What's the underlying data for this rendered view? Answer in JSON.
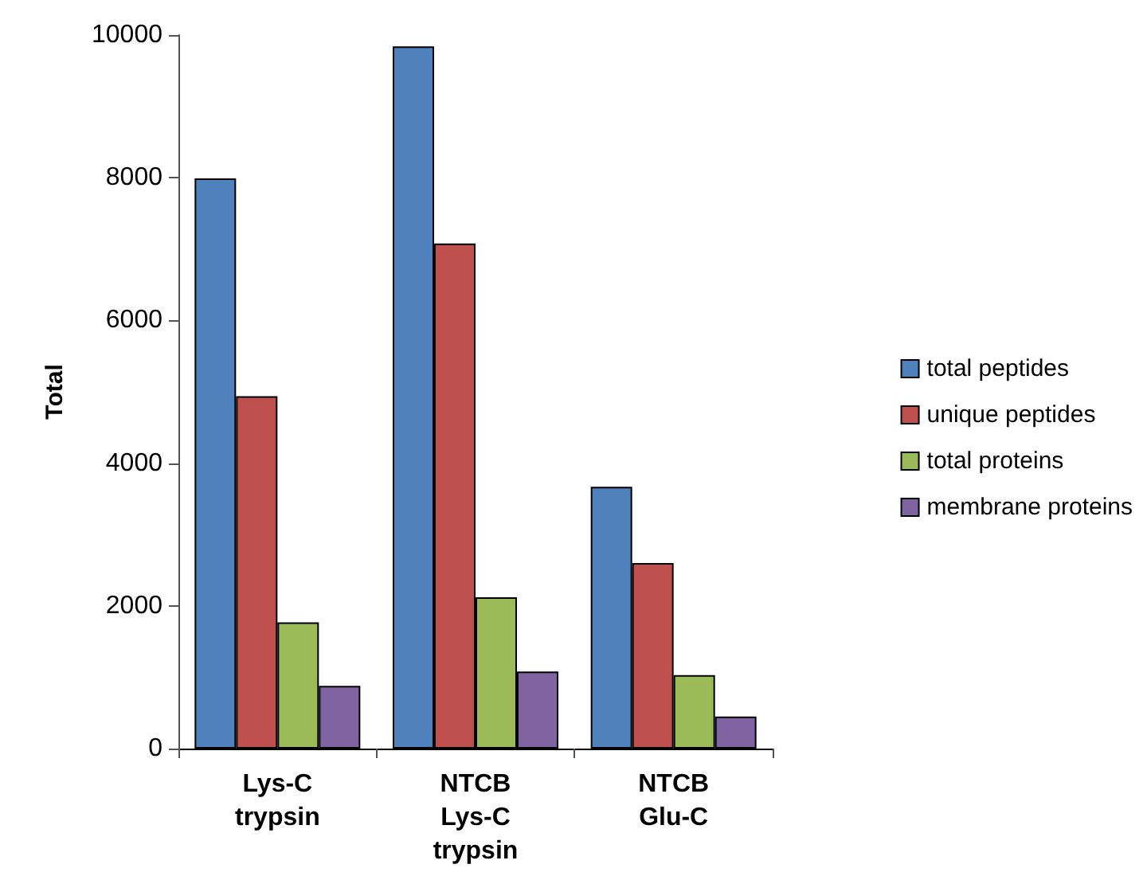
{
  "chart_data": {
    "type": "bar",
    "ylabel": "Total",
    "categories": [
      "Lys-C\ntrypsin",
      "NTCB\nLys-C\ntrypsin",
      "NTCB\nGlu-C"
    ],
    "series": [
      {
        "name": "total peptides",
        "color": "#4f81bd",
        "values": [
          7990,
          9840,
          3670
        ]
      },
      {
        "name": "unique peptides",
        "color": "#c0504d",
        "values": [
          4940,
          7080,
          2600
        ]
      },
      {
        "name": "total proteins",
        "color": "#9bbb59",
        "values": [
          1770,
          2120,
          1030
        ]
      },
      {
        "name": "membrane proteins",
        "color": "#8064a2",
        "values": [
          880,
          1080,
          450
        ]
      }
    ],
    "ylim": [
      0,
      10000
    ],
    "yticks": [
      0,
      2000,
      4000,
      6000,
      8000,
      10000
    ],
    "grid": false,
    "legend": "right"
  }
}
